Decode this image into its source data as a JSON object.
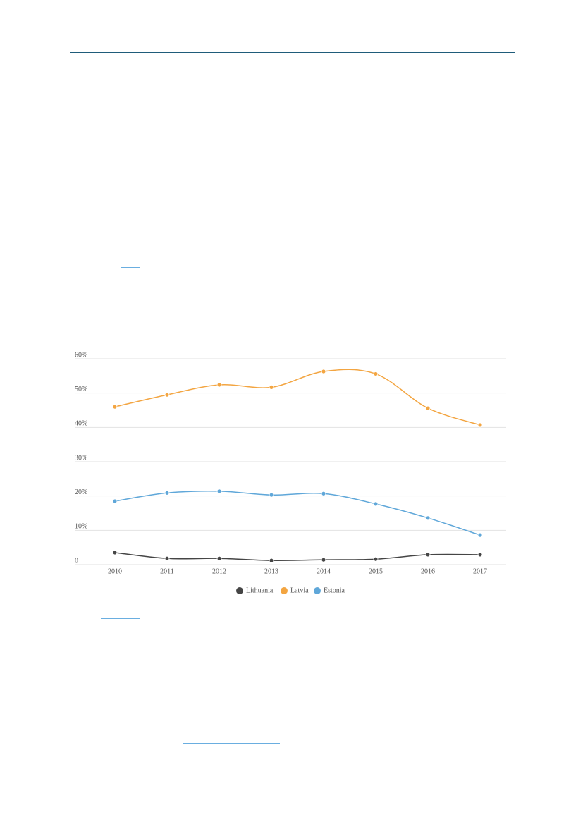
{
  "chart_data": {
    "type": "line",
    "categories": [
      "2010",
      "2011",
      "2012",
      "2013",
      "2014",
      "2015",
      "2016",
      "2017"
    ],
    "series": [
      {
        "name": "Lithuania",
        "color": "#454545",
        "values": [
          3.5,
          1.8,
          1.8,
          1.2,
          1.4,
          1.6,
          2.9,
          2.9
        ]
      },
      {
        "name": "Latvia",
        "color": "#f3a541",
        "values": [
          46.0,
          49.5,
          52.4,
          51.7,
          56.3,
          55.6,
          45.6,
          40.7
        ]
      },
      {
        "name": "Estonia",
        "color": "#5fa7d9",
        "values": [
          18.5,
          20.9,
          21.4,
          20.3,
          20.7,
          17.7,
          13.6,
          8.6
        ]
      }
    ],
    "ylim": [
      0,
      60
    ],
    "yticks": [
      0,
      {
        "value": 10,
        "label": "10%"
      },
      {
        "value": 20,
        "label": "20%"
      },
      {
        "value": 30,
        "label": "30%"
      },
      {
        "value": 40,
        "label": "40%"
      },
      {
        "value": 50,
        "label": "50%"
      },
      {
        "value": 60,
        "label": "60%"
      }
    ],
    "grid": true,
    "legend": "bottom"
  }
}
